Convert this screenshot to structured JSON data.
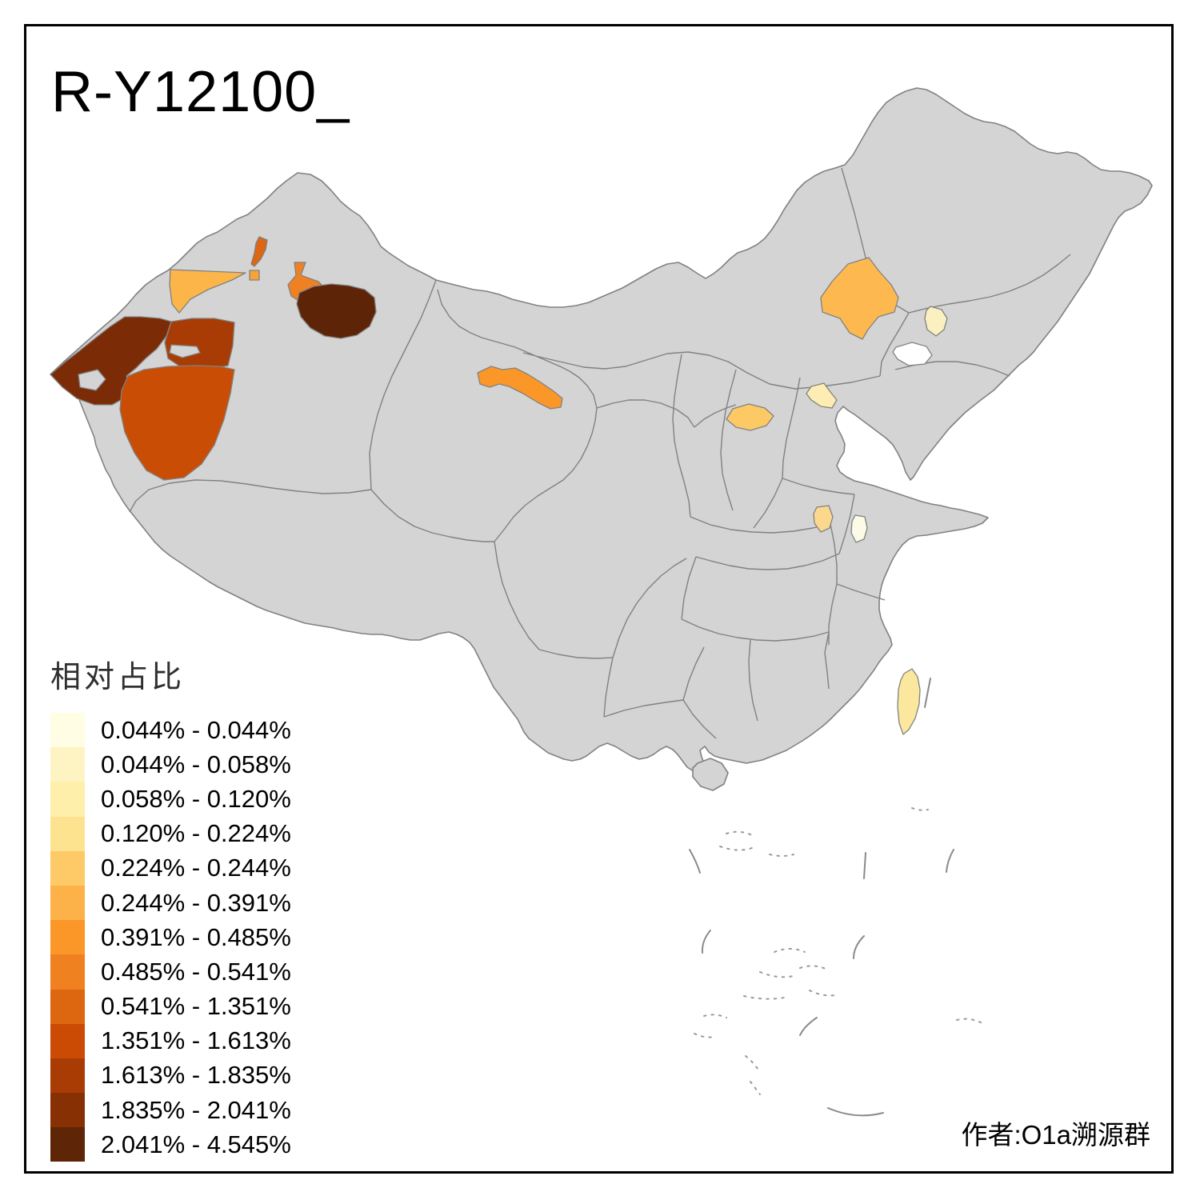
{
  "title": "R-Y12100_",
  "attribution": "作者:O1a溯源群",
  "legend": {
    "title": "相对占比",
    "items": [
      {
        "range": "0.044% - 0.044%",
        "color": "#FFFEE5"
      },
      {
        "range": "0.044% - 0.058%",
        "color": "#FEF4C3"
      },
      {
        "range": "0.058% - 0.120%",
        "color": "#FEEFAB"
      },
      {
        "range": "0.120% - 0.224%",
        "color": "#FDE390"
      },
      {
        "range": "0.224% - 0.244%",
        "color": "#FDCA67"
      },
      {
        "range": "0.244% - 0.391%",
        "color": "#FCB248"
      },
      {
        "range": "0.391% - 0.485%",
        "color": "#FB9728"
      },
      {
        "range": "0.485% - 0.541%",
        "color": "#EF8120"
      },
      {
        "range": "0.541% - 1.351%",
        "color": "#DD6710"
      },
      {
        "range": "1.351% - 1.613%",
        "color": "#CB4B04"
      },
      {
        "range": "1.613% - 1.835%",
        "color": "#A93C04"
      },
      {
        "range": "1.835% - 2.041%",
        "color": "#873003"
      },
      {
        "range": "2.041% - 4.545%",
        "color": "#5F2507"
      }
    ]
  },
  "map": {
    "land_fill": "#D4D4D4",
    "border_color": "#818181",
    "sea_color": "#FFFFFF",
    "regions": [
      {
        "id": "ili-valley",
        "area_hint": "northwest-xinjiang-triangle",
        "legend_bin": 5,
        "color": "#FCB549"
      },
      {
        "id": "karamay-strip",
        "area_hint": "north-xinjiang-strip",
        "legend_bin": 8,
        "color": "#DC6613"
      },
      {
        "id": "kuytun-patch",
        "area_hint": "north-xinjiang-small-patch",
        "legend_bin": 6,
        "color": "#F9A238"
      },
      {
        "id": "shihezi-wedge",
        "area_hint": "central-xinjiang-wedge",
        "legend_bin": 7,
        "color": "#F08122"
      },
      {
        "id": "east-xinjiang-dark",
        "area_hint": "east-of-urumqi-blob",
        "legend_bin": 12,
        "color": "#5E2407"
      },
      {
        "id": "aksu-band",
        "area_hint": "central-west-xinjiang-band",
        "legend_bin": 10,
        "color": "#A93C04"
      },
      {
        "id": "kashgar-west",
        "area_hint": "far-west-xinjiang",
        "legend_bin": 11,
        "color": "#7B2B05"
      },
      {
        "id": "hotan",
        "area_hint": "southwest-xinjiang-large",
        "legend_bin": 9,
        "color": "#CA4D05"
      },
      {
        "id": "gansu-corridor",
        "area_hint": "gansu-corridor-band",
        "legend_bin": 6,
        "color": "#FB9728"
      },
      {
        "id": "tongliao",
        "area_hint": "east-inner-mongolia",
        "legend_bin": 5,
        "color": "#FDB94F"
      },
      {
        "id": "shenyang",
        "area_hint": "liaoning-small",
        "legend_bin": 1,
        "color": "#FAF0C0"
      },
      {
        "id": "beijing-area",
        "area_hint": "north-china-pale",
        "legend_bin": 2,
        "color": "#FDEDB2"
      },
      {
        "id": "taiyuan",
        "area_hint": "shanxi-small",
        "legend_bin": 4,
        "color": "#FDC964"
      },
      {
        "id": "anhui-west",
        "area_hint": "anhui-yellow-small",
        "legend_bin": 3,
        "color": "#FBD88E"
      },
      {
        "id": "anhui-east",
        "area_hint": "anhui-pale-small",
        "legend_bin": 0,
        "color": "#FCFBE8"
      },
      {
        "id": "taiwan",
        "area_hint": "taiwan-island",
        "legend_bin": 3,
        "color": "#FCE79E"
      }
    ]
  }
}
